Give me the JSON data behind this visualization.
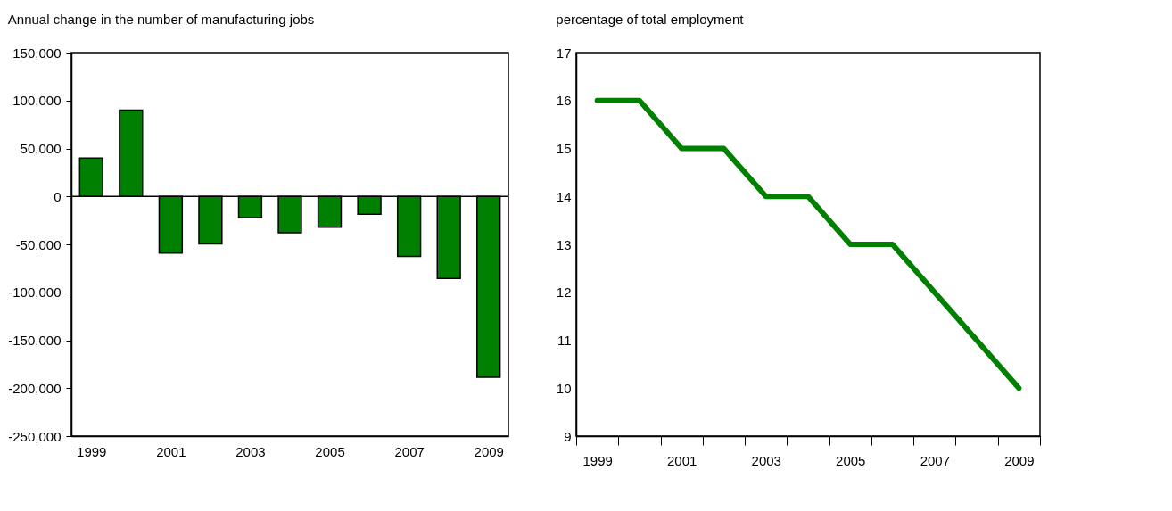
{
  "chart_data": [
    {
      "type": "bar",
      "title": "Annual change in the number of manufacturing jobs",
      "categories": [
        "1999",
        null,
        "2001",
        null,
        "2003",
        null,
        "2005",
        null,
        "2007",
        null,
        "2009"
      ],
      "values": [
        40000,
        90000,
        -59000,
        -49500,
        -22000,
        -38000,
        -32000,
        -18500,
        -62500,
        -85500,
        -188500
      ],
      "color": "#008000",
      "ylim": [
        -250000,
        150000
      ],
      "yticks": [
        {
          "value": -250000,
          "label": "-250,000"
        },
        {
          "value": -200000,
          "label": "-200,000"
        },
        {
          "value": -150000,
          "label": "-150,000"
        },
        {
          "value": -100000,
          "label": "-100,000"
        },
        {
          "value": -50000,
          "label": "-50,000"
        },
        0,
        {
          "value": 50000,
          "label": "50,000"
        },
        {
          "value": 100000,
          "label": "100,000"
        },
        {
          "value": 150000,
          "label": "150,000"
        }
      ]
    },
    {
      "type": "line",
      "title": "percentage of total employment",
      "categories": [
        "1999",
        null,
        "2001",
        null,
        "2003",
        null,
        "2005",
        null,
        "2007",
        null,
        "2009"
      ],
      "values": [
        16,
        16,
        15,
        15,
        14,
        14,
        13,
        13,
        12,
        11,
        10
      ],
      "color": "#008000",
      "ylim": [
        9,
        17
      ],
      "yticks": [
        9,
        10,
        11,
        12,
        13,
        14,
        15,
        16,
        17
      ]
    }
  ]
}
